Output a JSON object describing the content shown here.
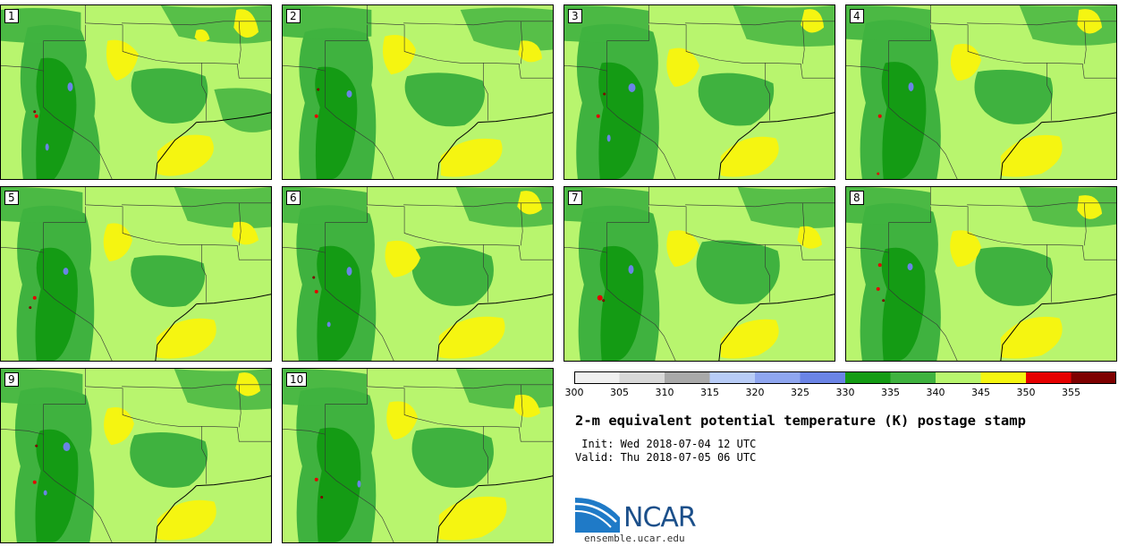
{
  "panels": [
    {
      "label": "1"
    },
    {
      "label": "2"
    },
    {
      "label": "3"
    },
    {
      "label": "4"
    },
    {
      "label": "5"
    },
    {
      "label": "6"
    },
    {
      "label": "7"
    },
    {
      "label": "8"
    },
    {
      "label": "9"
    },
    {
      "label": "10"
    }
  ],
  "colorbar": {
    "ticks": [
      "300",
      "305",
      "310",
      "315",
      "320",
      "325",
      "330",
      "335",
      "340",
      "345",
      "350",
      "355"
    ],
    "colors": [
      "#f0f0f0",
      "#d8d8d8",
      "#a9a9a9",
      "#b8ccf7",
      "#8fa6f0",
      "#6b84e6",
      "#149b14",
      "#3fb23f",
      "#b8f56e",
      "#f5f511",
      "#e60000",
      "#7e0000"
    ]
  },
  "title": "2-m equivalent potential temperature (K) postage stamp",
  "init": " Init: Wed 2018-07-04 12 UTC",
  "valid": "Valid: Thu 2018-07-05 06 UTC",
  "logo": {
    "text": "NCAR",
    "site": "ensemble.ucar.edu"
  }
}
